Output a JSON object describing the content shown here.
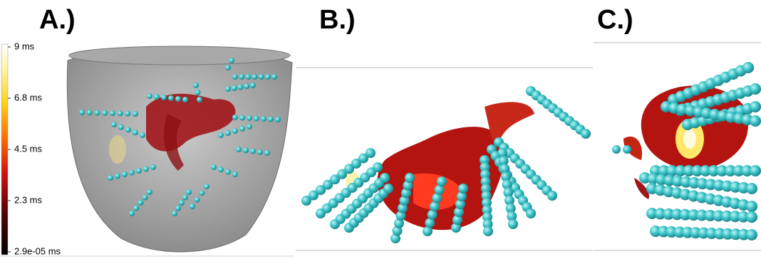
{
  "panels": [
    {
      "label": "A.)"
    },
    {
      "label": "B.)"
    },
    {
      "label": "C.)"
    }
  ],
  "colorbar": {
    "ticks": [
      "9 ms",
      "6.8 ms",
      "4.5 ms",
      "2.3 ms",
      "2.9e-05 ms"
    ]
  }
}
